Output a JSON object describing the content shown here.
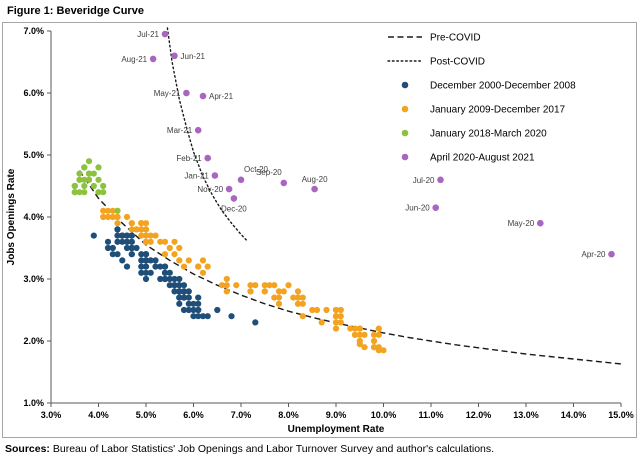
{
  "sources": {
    "label": "Sources:",
    "text": " Bureau of Labor Statistics' Job Openings and Labor Turnover Survey and author's calculations."
  },
  "chart_data": {
    "type": "scatter",
    "title": "Figure 1: Beveridge Curve",
    "xlabel": "Unemployment  Rate",
    "ylabel": "Jobs Openings Rate",
    "xlim": [
      3,
      15
    ],
    "ylim": [
      1,
      7
    ],
    "grid": false,
    "legend_position": "top-right-inside",
    "x_ticks": {
      "values": [
        3,
        4,
        5,
        6,
        7,
        8,
        9,
        10,
        11,
        12,
        13,
        14,
        15
      ],
      "labels": [
        "3.0%",
        "4.0%",
        "5.0%",
        "6.0%",
        "7.0%",
        "8.0%",
        "9.0%",
        "10.0%",
        "11.0%",
        "12.0%",
        "13.0%",
        "14.0%",
        "15.0%"
      ]
    },
    "y_ticks": {
      "values": [
        1,
        2,
        3,
        4,
        5,
        6,
        7
      ],
      "labels": [
        "1.0%",
        "2.0%",
        "3.0%",
        "4.0%",
        "5.0%",
        "6.0%",
        "7.0%"
      ]
    },
    "axis_color": "#595959",
    "curve_color": "#1a1a1a",
    "curves": [
      {
        "name": "Pre-COVID",
        "style": "dashed",
        "points": [
          [
            3.6,
            4.75
          ],
          [
            4,
            4.3
          ],
          [
            4.5,
            3.9
          ],
          [
            5,
            3.55
          ],
          [
            5.5,
            3.3
          ],
          [
            6,
            3.08
          ],
          [
            6.5,
            2.9
          ],
          [
            7,
            2.74
          ],
          [
            7.5,
            2.6
          ],
          [
            8,
            2.48
          ],
          [
            8.5,
            2.38
          ],
          [
            9,
            2.29
          ],
          [
            9.5,
            2.21
          ],
          [
            10,
            2.13
          ],
          [
            10.5,
            2.06
          ],
          [
            11,
            2.0
          ],
          [
            11.5,
            1.94
          ],
          [
            12,
            1.89
          ],
          [
            12.5,
            1.84
          ],
          [
            13,
            1.79
          ],
          [
            13.5,
            1.75
          ],
          [
            14,
            1.71
          ],
          [
            14.5,
            1.67
          ],
          [
            15,
            1.63
          ]
        ]
      },
      {
        "name": "Post-COVID",
        "style": "dotted",
        "points": [
          [
            5.45,
            7.05
          ],
          [
            5.55,
            6.5
          ],
          [
            5.7,
            5.9
          ],
          [
            5.85,
            5.45
          ],
          [
            6.0,
            5.05
          ],
          [
            6.2,
            4.65
          ],
          [
            6.4,
            4.35
          ],
          [
            6.6,
            4.1
          ],
          [
            6.8,
            3.9
          ],
          [
            7.0,
            3.72
          ],
          [
            7.15,
            3.6
          ]
        ]
      }
    ],
    "series": [
      {
        "name": "December 2000-December 2008",
        "color": "#1F4E79",
        "points": [
          [
            3.9,
            3.7
          ],
          [
            4.2,
            3.6
          ],
          [
            4.2,
            3.5
          ],
          [
            4.3,
            3.5
          ],
          [
            4.4,
            3.4
          ],
          [
            4.3,
            3.4
          ],
          [
            4.5,
            3.3
          ],
          [
            4.6,
            3.2
          ],
          [
            4.9,
            3.1
          ],
          [
            5.0,
            3.1
          ],
          [
            5.3,
            3.0
          ],
          [
            5.5,
            2.9
          ],
          [
            5.7,
            3.0
          ],
          [
            5.7,
            2.9
          ],
          [
            5.7,
            2.8
          ],
          [
            5.7,
            2.9
          ],
          [
            5.9,
            2.8
          ],
          [
            5.8,
            2.8
          ],
          [
            5.8,
            2.7
          ],
          [
            5.8,
            2.8
          ],
          [
            5.7,
            2.7
          ],
          [
            5.7,
            2.8
          ],
          [
            5.7,
            2.7
          ],
          [
            5.9,
            2.7
          ],
          [
            6.0,
            2.6
          ],
          [
            5.8,
            2.7
          ],
          [
            5.9,
            2.6
          ],
          [
            5.9,
            2.5
          ],
          [
            6.0,
            2.4
          ],
          [
            6.1,
            2.5
          ],
          [
            6.3,
            2.4
          ],
          [
            6.2,
            2.4
          ],
          [
            6.1,
            2.5
          ],
          [
            6.1,
            2.4
          ],
          [
            6.0,
            2.5
          ],
          [
            5.8,
            2.5
          ],
          [
            5.7,
            2.6
          ],
          [
            5.7,
            2.8
          ],
          [
            5.6,
            2.8
          ],
          [
            5.8,
            2.9
          ],
          [
            5.6,
            2.9
          ],
          [
            5.6,
            3.0
          ],
          [
            5.6,
            2.9
          ],
          [
            5.5,
            3.0
          ],
          [
            5.4,
            3.0
          ],
          [
            5.4,
            3.1
          ],
          [
            5.5,
            3.1
          ],
          [
            5.4,
            3.2
          ],
          [
            5.4,
            3.1
          ],
          [
            5.3,
            3.2
          ],
          [
            5.4,
            3.2
          ],
          [
            5.2,
            3.2
          ],
          [
            5.2,
            3.3
          ],
          [
            5.1,
            3.3
          ],
          [
            5.0,
            3.3
          ],
          [
            5.0,
            3.4
          ],
          [
            4.9,
            3.3
          ],
          [
            5.0,
            3.4
          ],
          [
            5.0,
            3.3
          ],
          [
            5.0,
            3.4
          ],
          [
            4.9,
            3.4
          ],
          [
            4.7,
            3.5
          ],
          [
            4.8,
            3.5
          ],
          [
            4.7,
            3.6
          ],
          [
            4.7,
            3.7
          ],
          [
            4.6,
            3.6
          ],
          [
            4.6,
            3.7
          ],
          [
            4.7,
            3.6
          ],
          [
            4.7,
            3.7
          ],
          [
            4.5,
            3.7
          ],
          [
            4.4,
            3.8
          ],
          [
            4.5,
            3.7
          ],
          [
            4.4,
            3.8
          ],
          [
            4.6,
            3.7
          ],
          [
            4.5,
            3.7
          ],
          [
            4.4,
            3.7
          ],
          [
            4.5,
            3.6
          ],
          [
            4.4,
            3.6
          ],
          [
            4.6,
            3.6
          ],
          [
            4.7,
            3.5
          ],
          [
            4.6,
            3.5
          ],
          [
            4.7,
            3.4
          ],
          [
            4.7,
            3.5
          ],
          [
            4.7,
            3.4
          ],
          [
            5.0,
            3.3
          ],
          [
            5.0,
            3.2
          ],
          [
            4.9,
            3.2
          ],
          [
            5.1,
            3.1
          ],
          [
            5.0,
            3.0
          ],
          [
            5.4,
            3.0
          ],
          [
            5.6,
            2.9
          ],
          [
            5.8,
            2.8
          ],
          [
            6.1,
            2.7
          ],
          [
            6.1,
            2.6
          ],
          [
            6.5,
            2.5
          ],
          [
            6.8,
            2.4
          ],
          [
            7.3,
            2.3
          ]
        ]
      },
      {
        "name": "January 2009-December 2017",
        "color": "#F3A320",
        "points": [
          [
            7.8,
            2.6
          ],
          [
            8.3,
            2.4
          ],
          [
            8.7,
            2.3
          ],
          [
            9.0,
            2.2
          ],
          [
            9.4,
            2.1
          ],
          [
            9.5,
            2.0
          ],
          [
            9.5,
            1.95
          ],
          [
            9.6,
            1.9
          ],
          [
            9.8,
            1.9
          ],
          [
            10.0,
            1.85
          ],
          [
            9.9,
            1.9
          ],
          [
            9.9,
            1.85
          ],
          [
            9.8,
            1.9
          ],
          [
            9.8,
            2.0
          ],
          [
            9.9,
            2.1
          ],
          [
            9.9,
            2.2
          ],
          [
            9.6,
            2.1
          ],
          [
            9.4,
            2.1
          ],
          [
            9.5,
            2.2
          ],
          [
            9.5,
            2.1
          ],
          [
            9.5,
            2.2
          ],
          [
            9.4,
            2.2
          ],
          [
            9.8,
            2.1
          ],
          [
            9.3,
            2.2
          ],
          [
            9.1,
            2.3
          ],
          [
            9.0,
            2.3
          ],
          [
            9.0,
            2.4
          ],
          [
            9.1,
            2.4
          ],
          [
            9.0,
            2.4
          ],
          [
            9.1,
            2.5
          ],
          [
            9.0,
            2.5
          ],
          [
            9.0,
            2.4
          ],
          [
            9.0,
            2.5
          ],
          [
            8.8,
            2.5
          ],
          [
            8.6,
            2.5
          ],
          [
            8.5,
            2.5
          ],
          [
            8.3,
            2.7
          ],
          [
            8.3,
            2.6
          ],
          [
            8.2,
            2.7
          ],
          [
            8.2,
            2.8
          ],
          [
            8.2,
            2.6
          ],
          [
            8.2,
            2.7
          ],
          [
            8.2,
            2.6
          ],
          [
            8.1,
            2.7
          ],
          [
            7.8,
            2.7
          ],
          [
            7.8,
            2.8
          ],
          [
            7.7,
            2.7
          ],
          [
            7.9,
            2.8
          ],
          [
            8.0,
            2.9
          ],
          [
            7.7,
            2.9
          ],
          [
            7.5,
            2.8
          ],
          [
            7.6,
            2.9
          ],
          [
            7.5,
            2.9
          ],
          [
            7.5,
            2.8
          ],
          [
            7.3,
            2.9
          ],
          [
            7.2,
            2.8
          ],
          [
            7.2,
            2.9
          ],
          [
            7.2,
            2.8
          ],
          [
            6.9,
            2.9
          ],
          [
            6.7,
            2.8
          ],
          [
            6.6,
            2.9
          ],
          [
            6.7,
            3.0
          ],
          [
            6.7,
            2.9
          ],
          [
            6.2,
            3.1
          ],
          [
            6.3,
            3.2
          ],
          [
            6.1,
            3.2
          ],
          [
            6.2,
            3.3
          ],
          [
            6.1,
            3.2
          ],
          [
            5.9,
            3.3
          ],
          [
            5.7,
            3.3
          ],
          [
            5.8,
            3.2
          ],
          [
            5.6,
            3.4
          ],
          [
            5.7,
            3.5
          ],
          [
            5.5,
            3.5
          ],
          [
            5.4,
            3.4
          ],
          [
            5.4,
            3.6
          ],
          [
            5.6,
            3.6
          ],
          [
            5.3,
            3.6
          ],
          [
            5.2,
            3.7
          ],
          [
            5.1,
            3.6
          ],
          [
            5.0,
            3.7
          ],
          [
            5.0,
            3.6
          ],
          [
            5.1,
            3.7
          ],
          [
            5.0,
            3.6
          ],
          [
            4.9,
            3.8
          ],
          [
            4.9,
            3.7
          ],
          [
            5.0,
            3.8
          ],
          [
            5.0,
            3.9
          ],
          [
            4.8,
            3.8
          ],
          [
            4.9,
            3.9
          ],
          [
            4.8,
            3.8
          ],
          [
            4.9,
            3.9
          ],
          [
            5.0,
            3.8
          ],
          [
            4.9,
            3.9
          ],
          [
            4.7,
            3.8
          ],
          [
            4.7,
            3.9
          ],
          [
            4.7,
            3.9
          ],
          [
            4.6,
            4.0
          ],
          [
            4.4,
            4.0
          ],
          [
            4.4,
            3.9
          ],
          [
            4.4,
            4.0
          ],
          [
            4.3,
            4.1
          ],
          [
            4.3,
            4.0
          ],
          [
            4.4,
            4.1
          ],
          [
            4.2,
            4.1
          ],
          [
            4.1,
            4.0
          ],
          [
            4.2,
            4.0
          ],
          [
            4.1,
            4.1
          ]
        ]
      },
      {
        "name": "January 2018-March 2020",
        "color": "#8CC23E",
        "points": [
          [
            4.1,
            4.4
          ],
          [
            4.1,
            4.5
          ],
          [
            4.0,
            4.4
          ],
          [
            3.9,
            4.5
          ],
          [
            3.8,
            4.6
          ],
          [
            4.0,
            4.6
          ],
          [
            3.8,
            4.7
          ],
          [
            3.8,
            4.6
          ],
          [
            3.7,
            4.8
          ],
          [
            3.8,
            4.9
          ],
          [
            3.7,
            4.8
          ],
          [
            3.9,
            4.7
          ],
          [
            4.0,
            4.8
          ],
          [
            3.8,
            4.7
          ],
          [
            3.8,
            4.6
          ],
          [
            3.6,
            4.7
          ],
          [
            3.6,
            4.6
          ],
          [
            3.7,
            4.6
          ],
          [
            3.7,
            4.5
          ],
          [
            3.7,
            4.4
          ],
          [
            3.5,
            4.4
          ],
          [
            3.6,
            4.4
          ],
          [
            3.5,
            4.5
          ],
          [
            3.5,
            4.4
          ],
          [
            3.6,
            4.6
          ],
          [
            3.5,
            4.5
          ],
          [
            4.4,
            4.1
          ]
        ]
      },
      {
        "name": "April 2020-August 2021",
        "color": "#A866C0",
        "labeled_points": [
          {
            "x": 14.8,
            "y": 3.4,
            "label": "Apr-20",
            "label_pos": "left"
          },
          {
            "x": 13.3,
            "y": 3.9,
            "label": "May-20",
            "label_pos": "left"
          },
          {
            "x": 11.1,
            "y": 4.15,
            "label": "Jun-20",
            "label_pos": "left"
          },
          {
            "x": 11.2,
            "y": 4.6,
            "label": "Jul-20",
            "label_pos": "left"
          },
          {
            "x": 8.55,
            "y": 4.45,
            "label": "Aug-20",
            "label_pos": "above"
          },
          {
            "x": 7.9,
            "y": 4.55,
            "label": "Sep-20",
            "label_pos": "above-left"
          },
          {
            "x": 7.0,
            "y": 4.6,
            "label": "Oct-20",
            "label_pos": "above-right"
          },
          {
            "x": 6.75,
            "y": 4.45,
            "label": "Nov-20",
            "label_pos": "left"
          },
          {
            "x": 6.85,
            "y": 4.3,
            "label": "Dec-20",
            "label_pos": "below"
          },
          {
            "x": 6.45,
            "y": 4.67,
            "label": "Jan-21",
            "label_pos": "left"
          },
          {
            "x": 6.3,
            "y": 4.95,
            "label": "Feb-21",
            "label_pos": "left"
          },
          {
            "x": 6.1,
            "y": 5.4,
            "label": "Mar-21",
            "label_pos": "left"
          },
          {
            "x": 6.2,
            "y": 5.95,
            "label": "Apr-21",
            "label_pos": "right"
          },
          {
            "x": 5.85,
            "y": 6.0,
            "label": "May-21",
            "label_pos": "left"
          },
          {
            "x": 5.6,
            "y": 6.6,
            "label": "Jun-21",
            "label_pos": "right"
          },
          {
            "x": 5.4,
            "y": 6.95,
            "label": "Jul-21",
            "label_pos": "left"
          },
          {
            "x": 5.15,
            "y": 6.55,
            "label": "Aug-21",
            "label_pos": "left"
          }
        ]
      }
    ]
  }
}
